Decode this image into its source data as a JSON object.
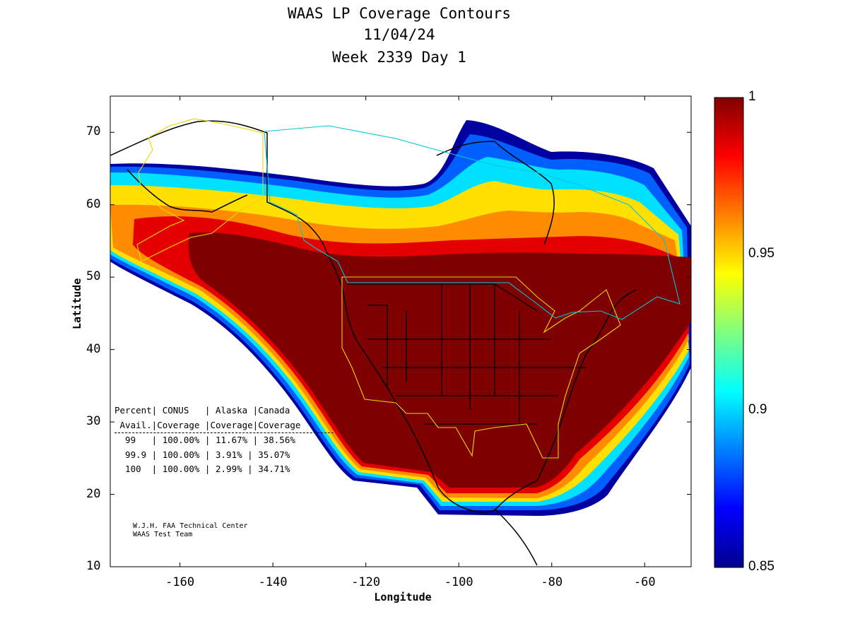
{
  "title_lines": [
    "WAAS LP Coverage Contours",
    "11/04/24",
    "Week 2339 Day 1"
  ],
  "xlabel": "Longitude",
  "ylabel": "Latitude",
  "x_ticks": [
    "-160",
    "-140",
    "-120",
    "-100",
    "-80",
    "-60"
  ],
  "y_ticks": [
    "70",
    "60",
    "50",
    "40",
    "30",
    "20",
    "10"
  ],
  "colorbar": {
    "ticks": [
      "1",
      "0.95",
      "0.9",
      "0.85"
    ],
    "min": 0.85,
    "max": 1
  },
  "stats_table": {
    "header1": "Percent| CONUS   | Alaska |Canada",
    "header2": " Avail.|Coverage |Coverage|Coverage",
    "rows": [
      "  99   | 100.00% | 11.67% | 38.56%",
      "  99.9 | 100.00% | 3.91% | 35.07%",
      "  100  | 100.00% | 2.99% | 34.71%"
    ]
  },
  "credit": [
    "W.J.H. FAA Technical Center",
    "WAAS Test Team"
  ],
  "map": {
    "lon_range": [
      -175,
      -50
    ],
    "lat_range": [
      10,
      75
    ]
  },
  "colors": {
    "max": "#7f0000",
    "min": "#00008f"
  }
}
